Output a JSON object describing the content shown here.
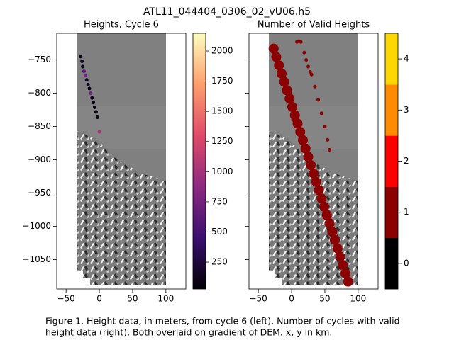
{
  "title": "ATL11_044404_0306_02_vU06.h5",
  "caption": [
    "Figure 1. Height data, in meters, from cycle 6 (left). Number of cycles with valid",
    "height data (right). Both overlaid on gradient of DEM. x, y in km."
  ],
  "chart_data": [
    {
      "type": "scatter",
      "title": "Heights, Cycle 6",
      "xlim": [
        -64,
        130
      ],
      "ylim": [
        -1094,
        -710
      ],
      "xticks": [
        {
          "value": -50,
          "label": "−50"
        },
        0,
        50,
        100
      ],
      "yticks": [
        {
          "value": -1050,
          "label": "−1050"
        },
        {
          "value": -1000,
          "label": "−1000"
        },
        {
          "value": -950,
          "label": "−950"
        },
        {
          "value": -900,
          "label": "−900"
        },
        {
          "value": -850,
          "label": "−850"
        },
        {
          "value": -800,
          "label": "−800"
        },
        {
          "value": -750,
          "label": "−750"
        }
      ],
      "yticklabels": true,
      "series": [
        {
          "x": [
            -28,
            -26,
            -25,
            -23,
            -21,
            -19,
            -17,
            -15,
            -13,
            -11,
            -9,
            -7,
            -5,
            -3,
            0
          ],
          "y": [
            -745,
            -752,
            -760,
            -767,
            -773,
            -780,
            -787,
            -793,
            -800,
            -807,
            -814,
            -821,
            -828,
            -836,
            -858
          ],
          "values": [
            80,
            90,
            120,
            650,
            720,
            150,
            100,
            80,
            700,
            120,
            90,
            70,
            60,
            50,
            1000
          ],
          "marker_size": 2.5
        }
      ],
      "colorbar": {
        "clim": [
          27,
          2147
        ],
        "ticks": [
          250,
          500,
          750,
          1000,
          1250,
          1500,
          1750,
          2000
        ],
        "colormap": [
          "#000004",
          "#3b0f70",
          "#8c2981",
          "#de4968",
          "#fe9f6d",
          "#fcfdbf"
        ]
      }
    },
    {
      "type": "scatter",
      "title": "Number of Valid Heights",
      "xlim": [
        -64,
        130
      ],
      "ylim": [
        -1094,
        -710
      ],
      "xticks": [
        {
          "value": -50,
          "label": "−50"
        },
        0,
        50,
        100
      ],
      "yticks": [
        -1050,
        -1000,
        -950,
        -900,
        -850,
        -800,
        -750
      ],
      "yticklabels": false,
      "series": [
        {
          "x": [
            -27,
            -23,
            -19,
            -15,
            -11,
            -7,
            -3,
            1,
            5,
            9,
            13,
            17,
            21,
            25,
            29,
            33,
            37,
            41,
            45,
            49,
            53,
            57,
            61,
            65,
            69,
            73,
            77,
            81,
            85
          ],
          "y": [
            -733,
            -745.5,
            -758,
            -770.5,
            -783,
            -795.5,
            -808,
            -820.5,
            -833,
            -845.5,
            -858,
            -870.5,
            -883,
            -895.5,
            -908,
            -920.5,
            -933,
            -945.5,
            -958,
            -970.5,
            -983,
            -995.5,
            -1008,
            -1020.5,
            -1033,
            -1045.5,
            -1058,
            -1070.5,
            -1083
          ],
          "values": [
            1,
            1,
            1,
            1,
            1,
            1,
            1,
            1,
            1,
            1,
            1,
            1,
            1,
            1,
            1,
            1,
            1,
            1,
            1,
            1,
            1,
            1,
            1,
            1,
            1,
            1,
            1,
            1,
            1
          ],
          "marker_size": 7
        },
        {
          "x": [
            8,
            11,
            14,
            19,
            22,
            25,
            28,
            30,
            35,
            40,
            45,
            50,
            54,
            57,
            -2,
            0,
            2
          ],
          "y": [
            -723,
            -722,
            -723,
            -739,
            -750,
            -760,
            -768,
            -772,
            -790,
            -810,
            -830,
            -850,
            -870,
            -885,
            -800,
            -820,
            -840
          ],
          "values": [
            1,
            1,
            1,
            1,
            1,
            1,
            1,
            1,
            1,
            1,
            1,
            1,
            1,
            1,
            1,
            1,
            1
          ],
          "marker_size": 2.5
        }
      ],
      "colorbar": {
        "clim": [
          -0.5,
          4.5
        ],
        "ticks": [
          0,
          1,
          2,
          3,
          4
        ],
        "colors": [
          "#000000",
          "#8b0000",
          "#ff0000",
          "#ff8c00",
          "#ffd700"
        ]
      }
    }
  ]
}
